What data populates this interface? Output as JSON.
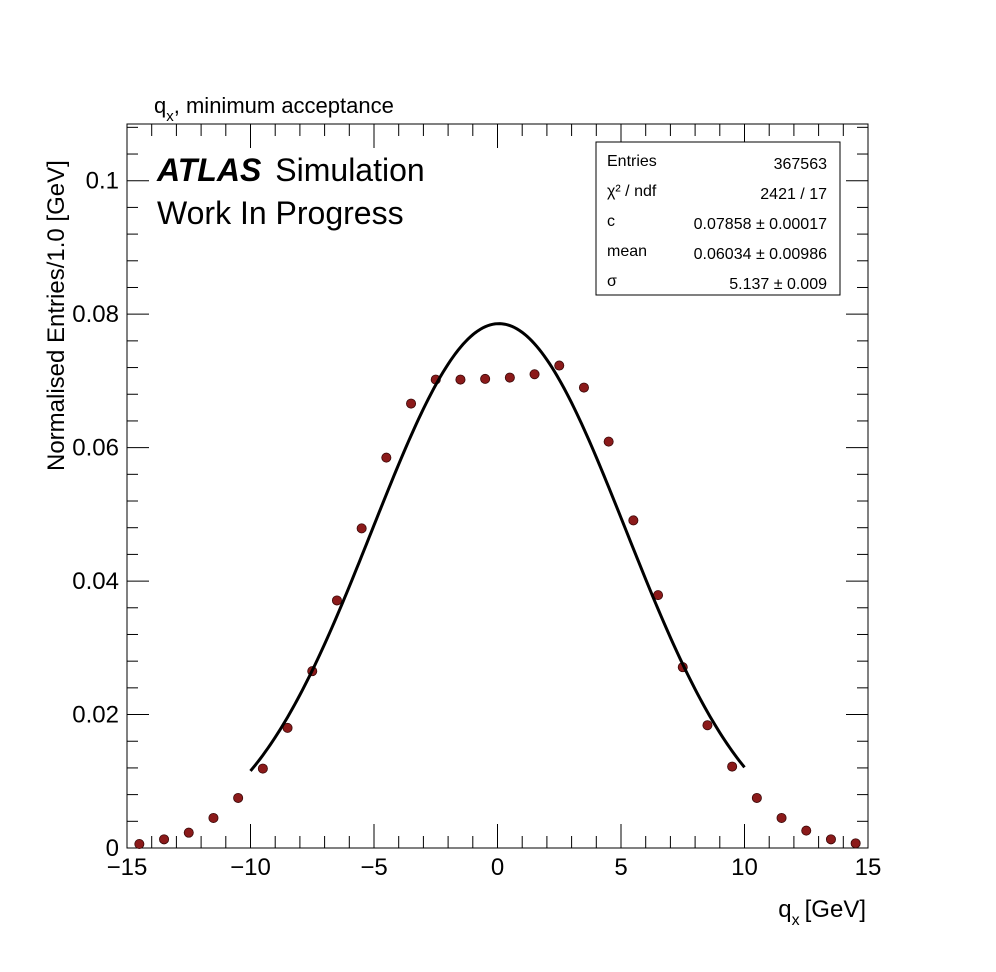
{
  "chart_data": {
    "type": "scatter",
    "title": "minimum acceptance",
    "title_symbol": "q",
    "title_symbol_sub": "x",
    "xlabel_symbol": "q",
    "xlabel_symbol_sub": "x",
    "xlabel_unit": "[GeV]",
    "ylabel": "Normalised Entries/1.0 [GeV]",
    "xlim": [
      -15,
      15
    ],
    "ylim": [
      0,
      0.1085
    ],
    "xticks": [
      -15,
      -10,
      -5,
      0,
      5,
      10,
      15
    ],
    "xtick_labels": [
      "−15",
      "−10",
      "−5",
      "0",
      "5",
      "10",
      "15"
    ],
    "yticks": [
      0,
      0.02,
      0.04,
      0.06,
      0.08,
      0.1
    ],
    "ytick_labels": [
      "0",
      "0.02",
      "0.04",
      "0.06",
      "0.08",
      "0.1"
    ],
    "grid": false,
    "atlas_label": "ATLAS",
    "atlas_suffix": "Simulation",
    "atlas_status": "Work In Progress",
    "series": [
      {
        "kind": "points",
        "color": "#8b1a1a",
        "x": [
          -14.5,
          -13.5,
          -12.5,
          -11.5,
          -10.5,
          -9.5,
          -8.5,
          -7.5,
          -6.5,
          -5.5,
          -4.5,
          -3.5,
          -2.5,
          -1.5,
          -0.5,
          0.5,
          1.5,
          2.5,
          3.5,
          4.5,
          5.5,
          6.5,
          7.5,
          8.5,
          9.5,
          10.5,
          11.5,
          12.5,
          13.5,
          14.5
        ],
        "y": [
          0.0006,
          0.0013,
          0.0023,
          0.0045,
          0.0075,
          0.0119,
          0.018,
          0.0265,
          0.0371,
          0.0479,
          0.0585,
          0.0666,
          0.0702,
          0.0702,
          0.0703,
          0.0705,
          0.071,
          0.0723,
          0.069,
          0.0609,
          0.0491,
          0.0379,
          0.0271,
          0.0184,
          0.0122,
          0.0075,
          0.0045,
          0.0026,
          0.0013,
          0.0007
        ]
      },
      {
        "kind": "fit",
        "color": "#000000",
        "function": "gaussian",
        "params": {
          "c": 0.07858,
          "mean": 0.06034,
          "sigma": 5.137
        },
        "range": [
          -10,
          10
        ]
      }
    ],
    "stats_box": {
      "rows": [
        {
          "label": "Entries",
          "value": "367563"
        },
        {
          "label": "χ² / ndf",
          "value": "2421 / 17"
        },
        {
          "label": "c",
          "value": "0.07858 ± 0.00017"
        },
        {
          "label": "mean",
          "value": "0.06034 ± 0.00986"
        },
        {
          "label": "σ",
          "value": "5.137 ± 0.009"
        }
      ],
      "placement": "top-right"
    }
  }
}
